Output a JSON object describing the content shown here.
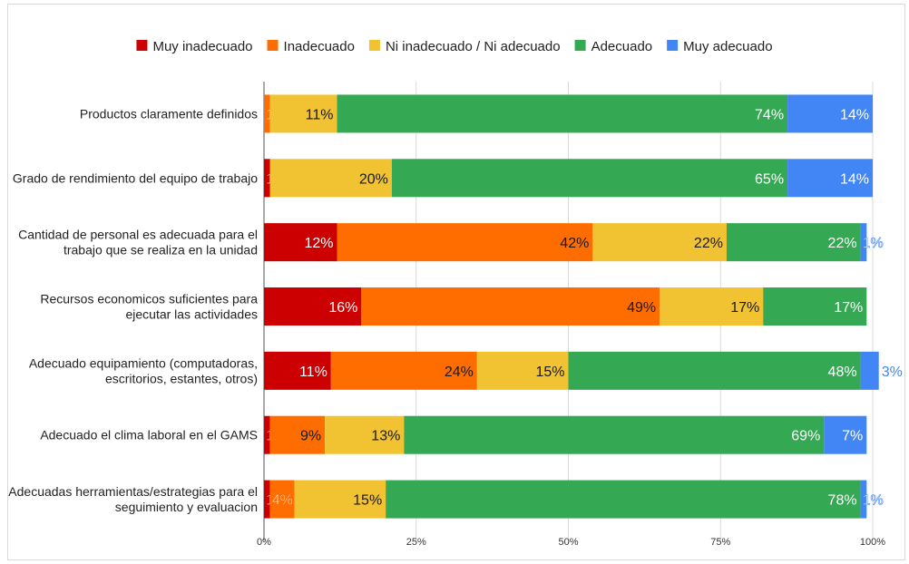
{
  "chart_data": {
    "type": "bar",
    "stacked": true,
    "percent_stacked": true,
    "orientation": "horizontal",
    "title": "",
    "xlabel": "",
    "ylabel": "",
    "xlim": [
      0,
      100
    ],
    "x_ticks": [
      "0%",
      "25%",
      "50%",
      "75%",
      "100%"
    ],
    "grid": true,
    "legend_position": "top",
    "categories": [
      [
        "Productos claramente definidos"
      ],
      [
        "Grado de rendimiento del equipo de trabajo"
      ],
      [
        "Cantidad de personal es adecuada para el",
        "trabajo que se realiza en la unidad"
      ],
      [
        "Recursos economicos suficientes para",
        "ejecutar las actividades"
      ],
      [
        "Adecuado equipamiento (computadoras,",
        "escritorios, estantes, otros)"
      ],
      [
        "Adecuado el clima laboral en el GAMS"
      ],
      [
        "Adecuadas herramientas/estrategias para el",
        "seguimiento y evaluacion"
      ]
    ],
    "series": [
      {
        "name": "Muy inadecuado",
        "color": "#cc0000",
        "values": [
          0,
          1,
          12,
          16,
          11,
          1,
          1
        ],
        "labels": [
          "",
          "1%",
          "12%",
          "16%",
          "11%",
          "1%",
          "1%"
        ]
      },
      {
        "name": "Inadecuado",
        "color": "#ff6d01",
        "values": [
          1,
          0,
          42,
          49,
          24,
          9,
          4
        ],
        "labels": [
          "1%",
          "",
          "42%",
          "49%",
          "24%",
          "9%",
          "4%"
        ]
      },
      {
        "name": "Ni inadecuado / Ni adecuado",
        "color": "#f1c232",
        "values": [
          11,
          20,
          22,
          17,
          15,
          13,
          15
        ],
        "labels": [
          "11%",
          "20%",
          "22%",
          "17%",
          "15%",
          "13%",
          "15%"
        ]
      },
      {
        "name": "Adecuado",
        "color": "#34a853",
        "values": [
          74,
          65,
          22,
          17,
          48,
          69,
          78
        ],
        "labels": [
          "74%",
          "65%",
          "22%",
          "17%",
          "48%",
          "69%",
          "78%"
        ]
      },
      {
        "name": "Muy adecuado",
        "color": "#4285f4",
        "values": [
          14,
          14,
          1,
          0,
          3,
          7,
          1
        ],
        "labels": [
          "14%",
          "14%",
          "1%",
          "",
          "3%",
          "7%",
          "1%"
        ]
      }
    ]
  }
}
